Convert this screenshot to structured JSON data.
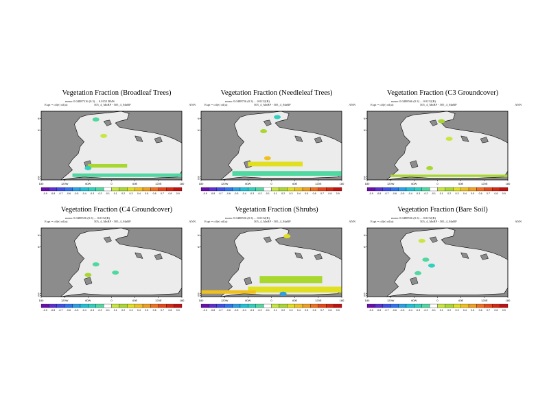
{
  "colors": {
    "land": "#8c8c8c",
    "ocean": "#ececec",
    "frame": "#000000",
    "scale": [
      "#6a0dad",
      "#5b2fd0",
      "#3f4fe8",
      "#2f74f0",
      "#2aa0e8",
      "#20c0d8",
      "#30d0c0",
      "#50d8a0",
      "#ffffff",
      "#c8e640",
      "#a8d830",
      "#e0e020",
      "#f0c020",
      "#f0a020",
      "#f07020",
      "#e84818",
      "#d82810",
      "#c01010"
    ]
  },
  "chart_data": [
    {
      "type": "heatmap",
      "title": "Vegetation Fraction (Broadleaf Trees)",
      "stats": "mean: 0.04887516 (0.3) ... 0.0152 RMS",
      "expt_label": "Expt = ctl(e) ctl(a)",
      "case": "505_4_MaBP - 505_4_MaBP",
      "season": "ANN",
      "x_ticks": [
        "180",
        "120W",
        "60W",
        "0",
        "60E",
        "120E",
        "180"
      ],
      "y_ticks": [
        "60N",
        "40N",
        "40S",
        "60S"
      ],
      "colorbar_ticks": [
        "-0.9",
        "-0.8",
        "-0.7",
        "-0.6",
        "-0.5",
        "-0.4",
        "-0.3",
        "-0.2",
        "-0.1",
        "0.1",
        "0.2",
        "0.3",
        "0.4",
        "0.5",
        "0.6",
        "0.7",
        "0.8",
        "0.9"
      ],
      "features": [
        {
          "kind": "band",
          "lon": [
            -100,
            180
          ],
          "lat": [
            -40,
            -34
          ],
          "value": -0.2
        },
        {
          "kind": "band",
          "lon": [
            -60,
            40
          ],
          "lat": [
            -24,
            -18
          ],
          "value": 0.2
        },
        {
          "kind": "blob",
          "lon": -40,
          "lat": 58,
          "value": -0.2
        },
        {
          "kind": "blob",
          "lon": -20,
          "lat": 30,
          "value": 0.1
        },
        {
          "kind": "blob",
          "lon": -60,
          "lat": -25,
          "value": -0.3
        }
      ]
    },
    {
      "type": "heatmap",
      "title": "Vegetation Fraction (Needleleaf Trees)",
      "stats": "mean: 0.0488756 (0.3) ... 0.0152(R)",
      "expt_label": "Expt = ctl(e) ctl(a)",
      "case": "505_4_MaBP - 505_4_MaBP",
      "season": "ANN",
      "x_ticks": [
        "180",
        "120W",
        "60W",
        "0",
        "60E",
        "120E",
        "180"
      ],
      "y_ticks": [
        "60N",
        "40N",
        "40S",
        "60S"
      ],
      "colorbar_ticks": [
        "-0.9",
        "-0.8",
        "-0.7",
        "-0.6",
        "-0.5",
        "-0.4",
        "-0.3",
        "-0.2",
        "-0.1",
        "0.1",
        "0.2",
        "0.3",
        "0.4",
        "0.5",
        "0.6",
        "0.7",
        "0.8",
        "0.9"
      ],
      "features": [
        {
          "kind": "band",
          "lon": [
            -100,
            180
          ],
          "lat": [
            -38,
            -30
          ],
          "value": -0.2
        },
        {
          "kind": "band",
          "lon": [
            -60,
            80
          ],
          "lat": [
            -22,
            -14
          ],
          "value": 0.3
        },
        {
          "kind": "blob",
          "lon": 15,
          "lat": 62,
          "value": -0.3
        },
        {
          "kind": "blob",
          "lon": -20,
          "lat": 38,
          "value": 0.2
        },
        {
          "kind": "blob",
          "lon": -10,
          "lat": -8,
          "value": 0.4
        }
      ]
    },
    {
      "type": "heatmap",
      "title": "Vegetation Fraction (C3 Groundcover)",
      "stats": "mean: 0.0488566 (0.3) ... 0.0152(R)",
      "expt_label": "Expt = ctl(e) ctl(a)",
      "case": "505_4_MaBP - 505_4_MaBP",
      "season": "ANN",
      "x_ticks": [
        "180",
        "120W",
        "60W",
        "0",
        "60E",
        "120E",
        "180"
      ],
      "y_ticks": [
        "60N",
        "40N",
        "40S",
        "60S"
      ],
      "colorbar_ticks": [
        "-0.9",
        "-0.8",
        "-0.7",
        "-0.6",
        "-0.5",
        "-0.4",
        "-0.3",
        "-0.2",
        "-0.1",
        "0.1",
        "0.2",
        "0.3",
        "0.4",
        "0.5",
        "0.6",
        "0.7",
        "0.8",
        "0.9"
      ],
      "features": [
        {
          "kind": "band",
          "lon": [
            -120,
            180
          ],
          "lat": [
            -40,
            -36
          ],
          "value": 0.2
        },
        {
          "kind": "blob",
          "lon": 10,
          "lat": 55,
          "value": 0.2
        },
        {
          "kind": "blob",
          "lon": 30,
          "lat": 25,
          "value": 0.1
        },
        {
          "kind": "blob",
          "lon": -20,
          "lat": -25,
          "value": 0.2
        }
      ]
    },
    {
      "type": "heatmap",
      "title": "Vegetation Fraction (C4 Groundcover)",
      "stats": "mean: 0.0488556 (0.3) ... 0.0152(R)",
      "expt_label": "Expt = ctl(e) ctl(a)",
      "case": "505_4_MaBP - 505_4_MaBP",
      "season": "ANN",
      "x_ticks": [
        "180",
        "120W",
        "60W",
        "0",
        "60E",
        "120E",
        "180"
      ],
      "y_ticks": [
        "60N",
        "40N",
        "40S",
        "60S"
      ],
      "colorbar_ticks": [
        "-0.9",
        "-0.8",
        "-0.7",
        "-0.6",
        "-0.5",
        "-0.4",
        "-0.3",
        "-0.2",
        "-0.1",
        "0.1",
        "0.2",
        "0.3",
        "0.4",
        "0.5",
        "0.6",
        "0.7",
        "0.8",
        "0.9"
      ],
      "features": [
        {
          "kind": "blob",
          "lon": -40,
          "lat": 10,
          "value": -0.2
        },
        {
          "kind": "blob",
          "lon": -60,
          "lat": -8,
          "value": 0.2
        },
        {
          "kind": "blob",
          "lon": 10,
          "lat": -4,
          "value": -0.2
        }
      ]
    },
    {
      "type": "heatmap",
      "title": "Vegetation Fraction (Shrubs)",
      "stats": "mean: 0.0488556 (0.3) ... 0.0152(R)",
      "expt_label": "Expt = ctl(e) ctl(a)",
      "case": "505_4_MaBP - 505_4_MaBP",
      "season": "ANN",
      "x_ticks": [
        "180",
        "120W",
        "60W",
        "0",
        "60E",
        "120E",
        "180"
      ],
      "y_ticks": [
        "60N",
        "40N",
        "40S",
        "60S"
      ],
      "colorbar_ticks": [
        "-0.9",
        "-0.8",
        "-0.7",
        "-0.6",
        "-0.5",
        "-0.4",
        "-0.3",
        "-0.2",
        "-0.1",
        "0.1",
        "0.2",
        "0.3",
        "0.4",
        "0.5",
        "0.6",
        "0.7",
        "0.8",
        "0.9"
      ],
      "features": [
        {
          "kind": "band",
          "lon": [
            -30,
            130
          ],
          "lat": [
            -22,
            -10
          ],
          "value": 0.2
        },
        {
          "kind": "band",
          "lon": [
            -60,
            180
          ],
          "lat": [
            -38,
            -28
          ],
          "value": 0.3
        },
        {
          "kind": "band",
          "lon": [
            -180,
            -40
          ],
          "lat": [
            -40,
            -34
          ],
          "value": 0.4
        },
        {
          "kind": "blob",
          "lon": 40,
          "lat": 58,
          "value": 0.3
        },
        {
          "kind": "blob",
          "lon": 30,
          "lat": -40,
          "value": -0.5
        }
      ]
    },
    {
      "type": "heatmap",
      "title": "Vegetation Fraction (Bare Soil)",
      "stats": "mean: 0.0488556 (0.3) ... 0.0152(R)",
      "expt_label": "Expt = ctl(e) ctl(a)",
      "case": "505_4_MaBP - 505_4_MaBP",
      "season": "ANN",
      "x_ticks": [
        "180",
        "120W",
        "60W",
        "0",
        "60E",
        "120E",
        "180"
      ],
      "y_ticks": [
        "60N",
        "40N",
        "40S",
        "60S"
      ],
      "colorbar_ticks": [
        "-0.9",
        "-0.8",
        "-0.7",
        "-0.6",
        "-0.5",
        "-0.4",
        "-0.3",
        "-0.2",
        "-0.1",
        "0.1",
        "0.2",
        "0.3",
        "0.4",
        "0.5",
        "0.6",
        "0.7",
        "0.8",
        "0.9"
      ],
      "features": [
        {
          "kind": "blob",
          "lon": -40,
          "lat": 50,
          "value": 0.1
        },
        {
          "kind": "blob",
          "lon": -30,
          "lat": 18,
          "value": -0.2
        },
        {
          "kind": "blob",
          "lon": -15,
          "lat": 8,
          "value": -0.3
        },
        {
          "kind": "blob",
          "lon": -50,
          "lat": -5,
          "value": -0.2
        }
      ]
    }
  ]
}
